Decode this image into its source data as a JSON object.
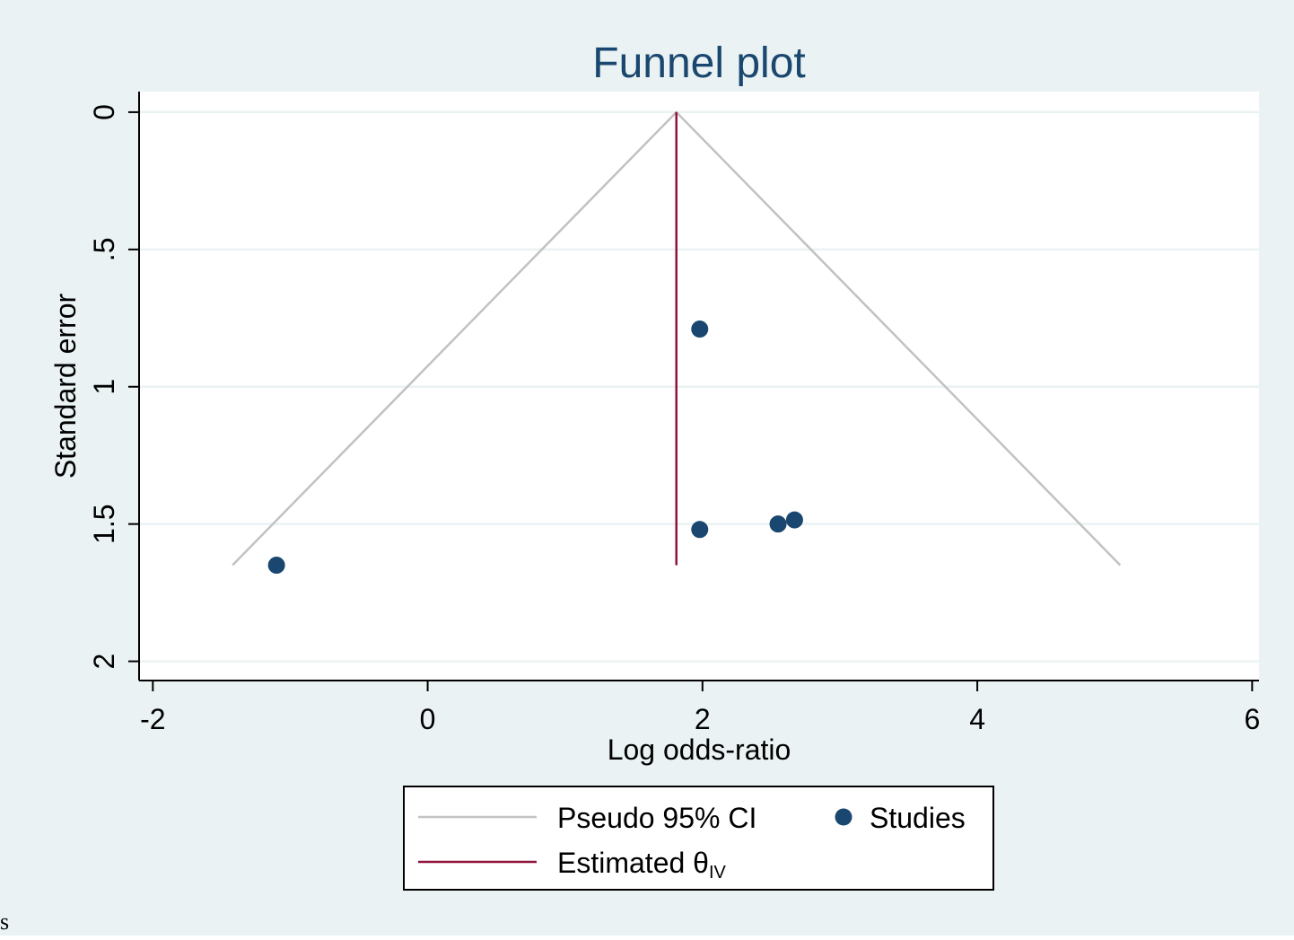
{
  "chart_data": {
    "type": "scatter",
    "title": "Funnel plot",
    "xlabel": "Log odds-ratio",
    "ylabel": "Standard error",
    "xlim": [
      -2.1,
      6.05
    ],
    "ylim": [
      2.07,
      -0.075
    ],
    "y_axis_inverted": true,
    "xticks": [
      -2,
      0,
      2,
      4,
      6
    ],
    "xtick_labels": [
      "-2",
      "0",
      "2",
      "4",
      "6"
    ],
    "yticks": [
      0,
      0.5,
      1,
      1.5,
      2
    ],
    "ytick_labels": [
      "0",
      ".5",
      "1",
      "1.5",
      "2"
    ],
    "grid": "horizontal",
    "estimate": 1.81,
    "funnel": {
      "apex": [
        1.81,
        0
      ],
      "left_end": [
        -1.42,
        1.65
      ],
      "right_end": [
        5.04,
        1.65
      ]
    },
    "series": [
      {
        "name": "Studies",
        "points": [
          {
            "x": 1.98,
            "y": 0.79
          },
          {
            "x": 1.98,
            "y": 1.52
          },
          {
            "x": 2.55,
            "y": 1.5
          },
          {
            "x": 2.67,
            "y": 1.485
          },
          {
            "x": -1.1,
            "y": 1.65
          }
        ]
      }
    ],
    "legend": {
      "placement": "bottom",
      "items": [
        {
          "label": "Pseudo 95% CI",
          "kind": "line",
          "color": "#c2c2c2"
        },
        {
          "label": "Studies",
          "kind": "marker",
          "color": "#1a476f"
        },
        {
          "label": "Estimated θ",
          "subscript": "IV",
          "kind": "line",
          "color": "#90133a"
        }
      ]
    },
    "colors": {
      "background": "#eaf2f3",
      "plot_region": "#ffffff",
      "title": "#1a476f",
      "marker": "#1a476f",
      "estimate_line": "#90133a",
      "funnel_line": "#c2c2c2",
      "grid": "#eaf2f3"
    }
  },
  "stray_text": "s"
}
